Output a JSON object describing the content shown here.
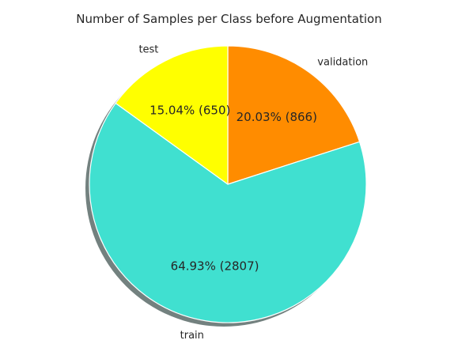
{
  "chart_data": {
    "type": "pie",
    "title": "Number of Samples per Class before Augmentation",
    "slices": [
      {
        "label": "validation",
        "value": 866,
        "percent_label": "20.03%  (866)",
        "color": "#FF8C00"
      },
      {
        "label": "train",
        "value": 2807,
        "percent_label": "64.93%  (2807)",
        "color": "#40E0D0"
      },
      {
        "label": "test",
        "value": 650,
        "percent_label": "15.04%  (650)",
        "color": "#FFFF00"
      }
    ],
    "start_angle_deg": 90,
    "direction": "clockwise",
    "shadow": true
  }
}
